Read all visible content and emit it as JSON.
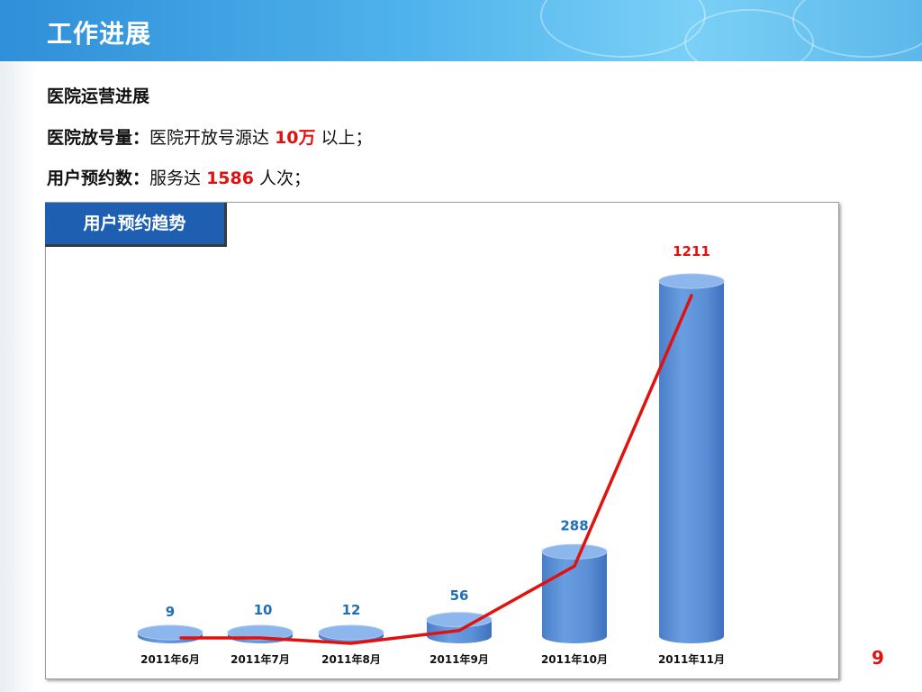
{
  "header": {
    "title": "工作进展"
  },
  "content": {
    "heading": "医院运营进展",
    "line1": {
      "label": "医院放号量：",
      "text_before": "医院开放号源达 ",
      "highlight": "10万",
      "text_after": " 以上；"
    },
    "line2": {
      "label": "用户预约数：",
      "text_before": "服务达 ",
      "highlight": "1586",
      "text_after": " 人次；"
    }
  },
  "chart_tag": "用户预约趋势",
  "page_number": "9",
  "colors": {
    "header": "#2f8fd8",
    "bar": "#5b8fd6",
    "line": "#e0120f",
    "value_label": "#1f6fb8",
    "highlight": "#e0120f"
  },
  "chart_data": {
    "type": "bar",
    "categories": [
      "2011年6月",
      "2011年7月",
      "2011年8月",
      "2011年9月",
      "2011年10月",
      "2011年11月"
    ],
    "values": [
      9,
      10,
      12,
      56,
      288,
      1211
    ],
    "series": [
      {
        "type": "bar",
        "values": [
          9,
          10,
          12,
          56,
          288,
          1211
        ]
      },
      {
        "type": "line",
        "values": [
          9,
          10,
          12,
          56,
          288,
          1211
        ]
      }
    ],
    "ylim": [
      0,
      1211
    ],
    "grid": false,
    "legend": "none"
  }
}
